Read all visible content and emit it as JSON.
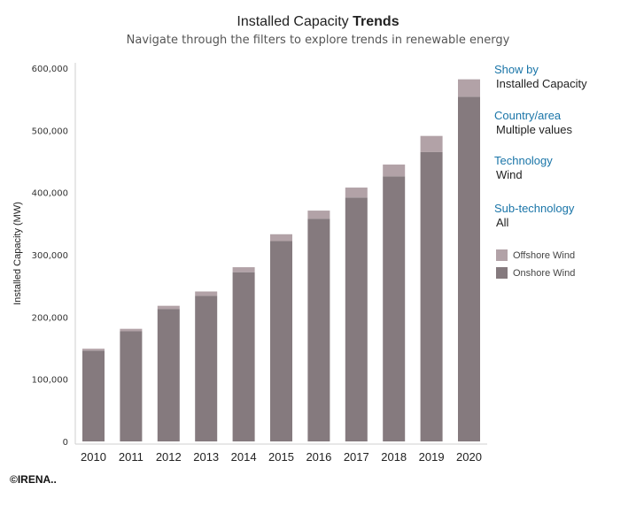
{
  "header": {
    "title_regular": "Installed Capacity",
    "title_bold": "Trends",
    "subtitle": "Navigate through the filters to explore trends in renewable energy"
  },
  "filters": {
    "show_by": {
      "label": "Show by",
      "value": "Installed Capacity"
    },
    "country": {
      "label": "Country/area",
      "value": "Multiple values"
    },
    "technology": {
      "label": "Technology",
      "value": "Wind"
    },
    "sub_technology": {
      "label": "Sub-technology",
      "value": "All"
    }
  },
  "legend": [
    {
      "label": "Offshore Wind",
      "color": "#b2a2a7"
    },
    {
      "label": "Onshore Wind",
      "color": "#857a7e"
    }
  ],
  "copyright": "©IRENA..",
  "chart_data": {
    "type": "bar",
    "stacked": true,
    "title": "Installed Capacity Trends",
    "xlabel": "",
    "ylabel": "Installed Capacity (MW)",
    "ylim": [
      0,
      600000
    ],
    "yticks": [
      0,
      100000,
      200000,
      300000,
      400000,
      500000,
      600000
    ],
    "ytick_labels": [
      "0",
      "100,000",
      "200,000",
      "300,000",
      "400,000",
      "500,000",
      "600,000"
    ],
    "categories": [
      "2010",
      "2011",
      "2012",
      "2013",
      "2014",
      "2015",
      "2016",
      "2017",
      "2018",
      "2019",
      "2020"
    ],
    "series": [
      {
        "name": "Onshore Wind",
        "color": "#857a7e",
        "values": [
          146000,
          177000,
          213000,
          234000,
          272000,
          322000,
          358000,
          392000,
          426000,
          465000,
          554000
        ]
      },
      {
        "name": "Offshore Wind",
        "color": "#b2a2a7",
        "values": [
          3000,
          4000,
          5000,
          7000,
          8000,
          11000,
          13000,
          16000,
          19000,
          26000,
          28000
        ]
      }
    ]
  }
}
